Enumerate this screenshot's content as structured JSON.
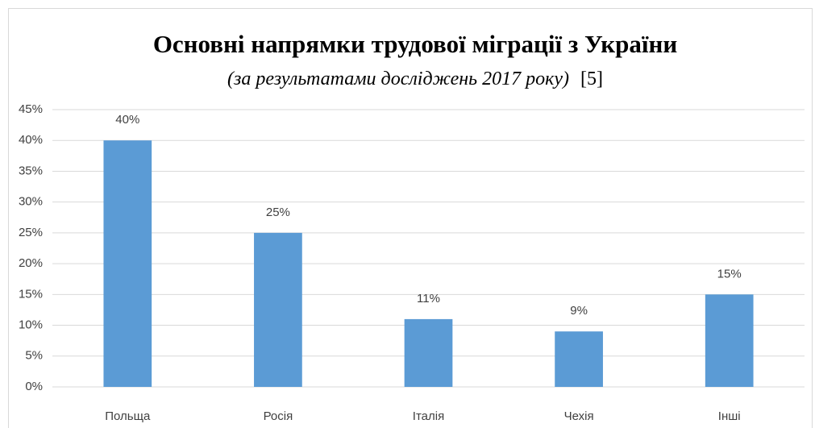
{
  "chart_data": {
    "type": "bar",
    "title": "Основні напрямки трудової міграції з України",
    "subtitle": "(за результатами досліджень 2017 року)",
    "reference": "[5]",
    "categories": [
      "Польща",
      "Росія",
      "Італія",
      "Чехія",
      "Інші"
    ],
    "values": [
      40,
      25,
      11,
      9,
      15
    ],
    "value_labels": [
      "40%",
      "25%",
      "11%",
      "9%",
      "15%"
    ],
    "color": "#5b9bd5",
    "ylim": [
      0,
      45
    ],
    "yticks": [
      {
        "value": 0,
        "label": "0%"
      },
      {
        "value": 5,
        "label": "5%"
      },
      {
        "value": 10,
        "label": "10%"
      },
      {
        "value": 15,
        "label": "15%"
      },
      {
        "value": 20,
        "label": "20%"
      },
      {
        "value": 25,
        "label": "25%"
      },
      {
        "value": 30,
        "label": "30%"
      },
      {
        "value": 35,
        "label": "35%"
      },
      {
        "value": 40,
        "label": "40%"
      },
      {
        "value": 45,
        "label": "45%"
      }
    ],
    "grid": true
  }
}
